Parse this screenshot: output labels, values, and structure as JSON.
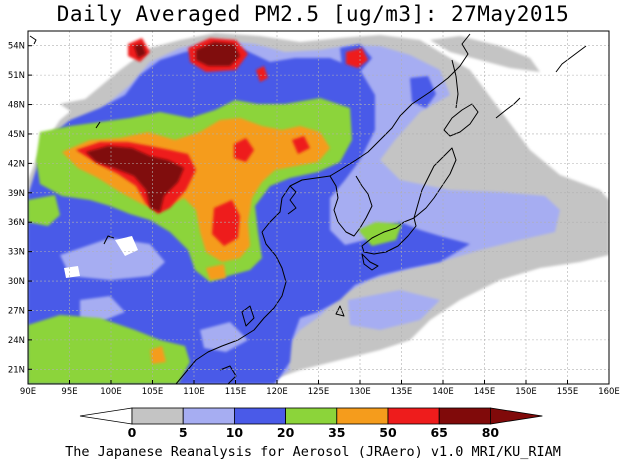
{
  "title": "Daily Averaged PM2.5 [ug/m3]: 27May2015",
  "credit": "The Japanese Reanalysis for Aerosol (JRAero) v1.0 MRI/KU_RIAM",
  "map": {
    "lon_range": [
      90,
      160
    ],
    "lat_range": [
      19.5,
      55.5
    ],
    "lon_ticks": [
      "90E",
      "95E",
      "100E",
      "105E",
      "110E",
      "115E",
      "120E",
      "125E",
      "130E",
      "135E",
      "140E",
      "145E",
      "150E",
      "155E",
      "160E"
    ],
    "lat_ticks": [
      "21N",
      "24N",
      "27N",
      "30N",
      "33N",
      "36N",
      "39N",
      "42N",
      "45N",
      "48N",
      "51N",
      "54N"
    ],
    "grid": true,
    "background_color": "#ffffff"
  },
  "colorbar": {
    "labels": [
      "0",
      "5",
      "10",
      "20",
      "35",
      "50",
      "65",
      "80"
    ],
    "colors": [
      "#ffffff",
      "#c4c4c4",
      "#a6adf2",
      "#4a5ae8",
      "#8cd43a",
      "#f59c1c",
      "#ee1c1c",
      "#800a0a"
    ],
    "under_color": "#ffffff",
    "over_color": "#800a0a"
  }
}
